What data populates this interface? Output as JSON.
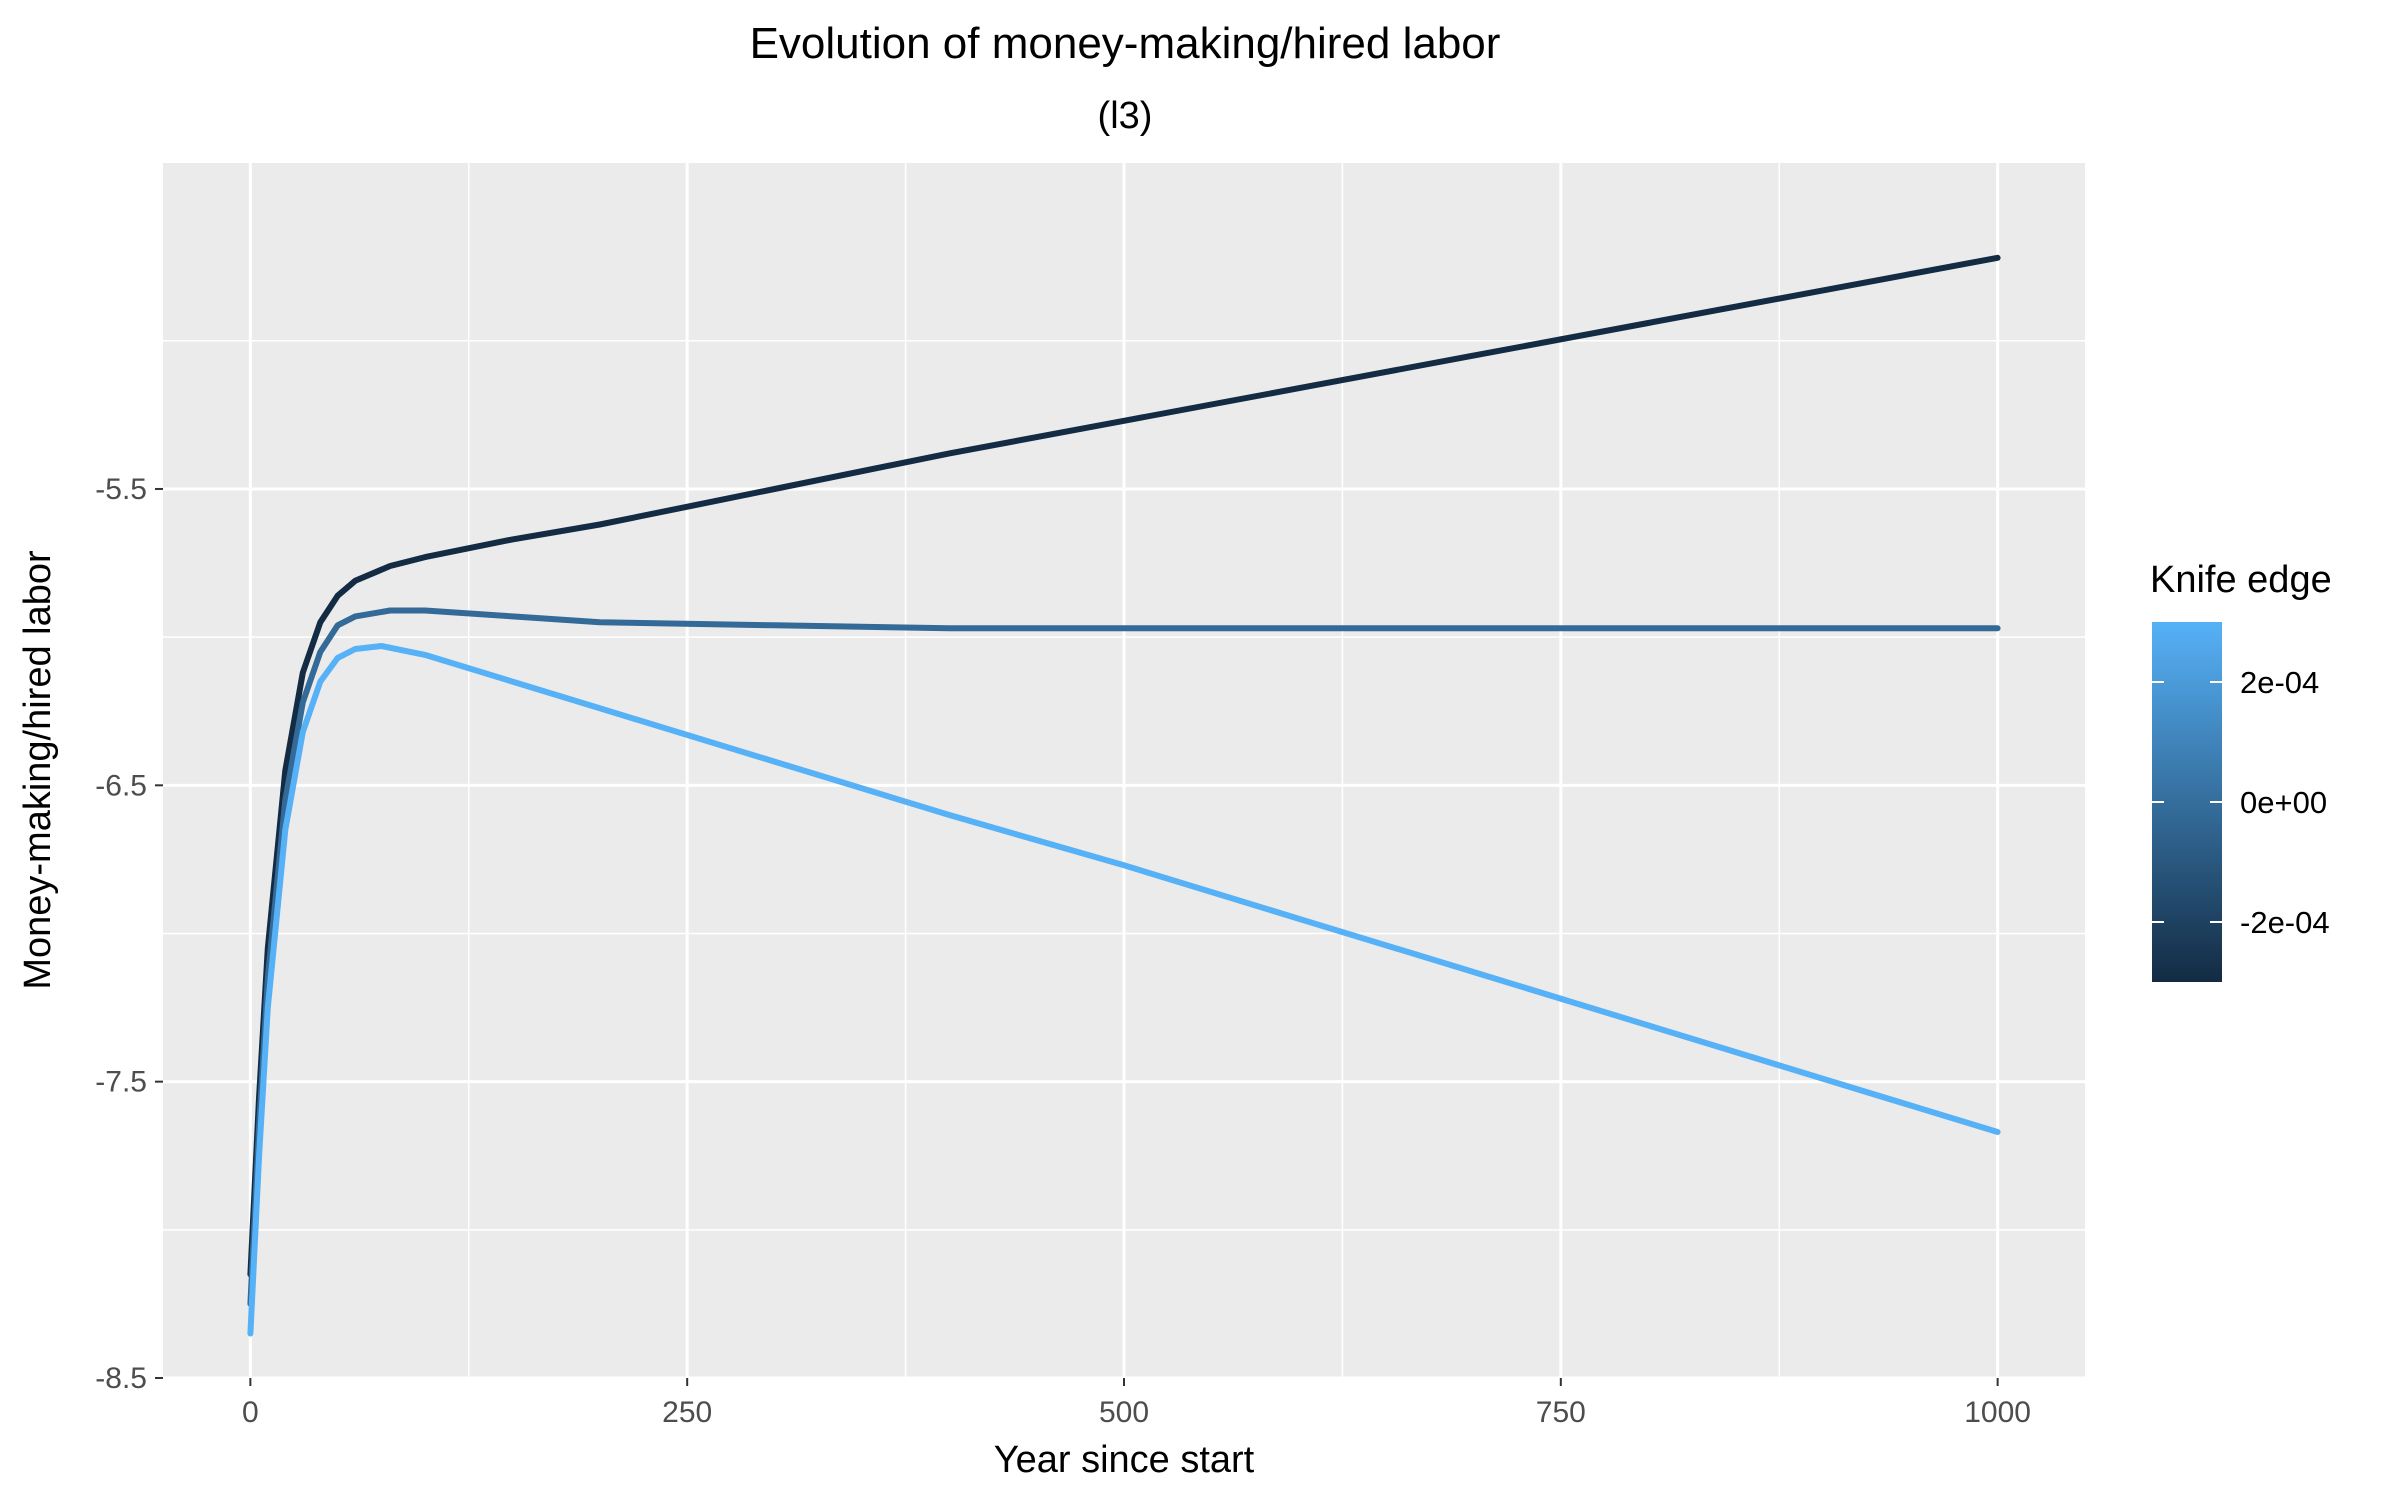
{
  "chart_data": {
    "type": "line",
    "title": "Evolution of  money-making/hired labor",
    "subtitle": "(l3)",
    "xlabel": "Year since start",
    "ylabel": "Money-making/hired labor",
    "xlim": [
      -50,
      1050
    ],
    "ylim": [
      -8.5,
      -4.4
    ],
    "x_ticks": [
      0,
      250,
      500,
      750,
      1000
    ],
    "x_tick_labels": [
      "0",
      "250",
      "500",
      "750",
      "1000"
    ],
    "y_ticks": [
      -8.5,
      -7.5,
      -6.5,
      -5.5
    ],
    "y_tick_labels": [
      "-8.5",
      "-7.5",
      "-6.5",
      "-5.5"
    ],
    "grid": true,
    "legend": {
      "title": "Knife edge",
      "position": "right",
      "type": "colorbar",
      "tick_labels": [
        "2e-04",
        "0e+00",
        "-2e-04"
      ],
      "tick_values": [
        0.0002,
        0.0,
        -0.0002
      ],
      "range": [
        -0.0003,
        0.0003
      ],
      "color_low": "#132b43",
      "color_high": "#56b1f7"
    },
    "series": [
      {
        "knife_edge": -0.0003,
        "color": "#132b43",
        "x": [
          0,
          5,
          10,
          20,
          30,
          40,
          50,
          60,
          80,
          100,
          150,
          200,
          300,
          400,
          500,
          600,
          700,
          800,
          900,
          1000
        ],
        "y": [
          -8.15,
          -7.55,
          -7.05,
          -6.45,
          -6.12,
          -5.95,
          -5.86,
          -5.81,
          -5.76,
          -5.73,
          -5.67,
          -5.62,
          -5.5,
          -5.38,
          -5.27,
          -5.16,
          -5.05,
          -4.94,
          -4.83,
          -4.72
        ]
      },
      {
        "knife_edge": 0.0,
        "color": "#336a98",
        "x": [
          0,
          5,
          10,
          20,
          30,
          40,
          50,
          60,
          80,
          100,
          150,
          200,
          300,
          400,
          500,
          600,
          700,
          800,
          900,
          1000
        ],
        "y": [
          -8.25,
          -7.65,
          -7.15,
          -6.55,
          -6.22,
          -6.05,
          -5.96,
          -5.93,
          -5.91,
          -5.91,
          -5.93,
          -5.95,
          -5.96,
          -5.97,
          -5.97,
          -5.97,
          -5.97,
          -5.97,
          -5.97,
          -5.97
        ]
      },
      {
        "knife_edge": 0.0003,
        "color": "#56b1f7",
        "x": [
          0,
          5,
          10,
          20,
          30,
          40,
          50,
          60,
          75,
          100,
          150,
          200,
          300,
          400,
          500,
          600,
          700,
          800,
          900,
          1000
        ],
        "y": [
          -8.35,
          -7.75,
          -7.25,
          -6.65,
          -6.32,
          -6.15,
          -6.07,
          -6.04,
          -6.03,
          -6.06,
          -6.15,
          -6.24,
          -6.42,
          -6.6,
          -6.77,
          -6.95,
          -7.13,
          -7.31,
          -7.49,
          -7.67
        ]
      }
    ]
  }
}
